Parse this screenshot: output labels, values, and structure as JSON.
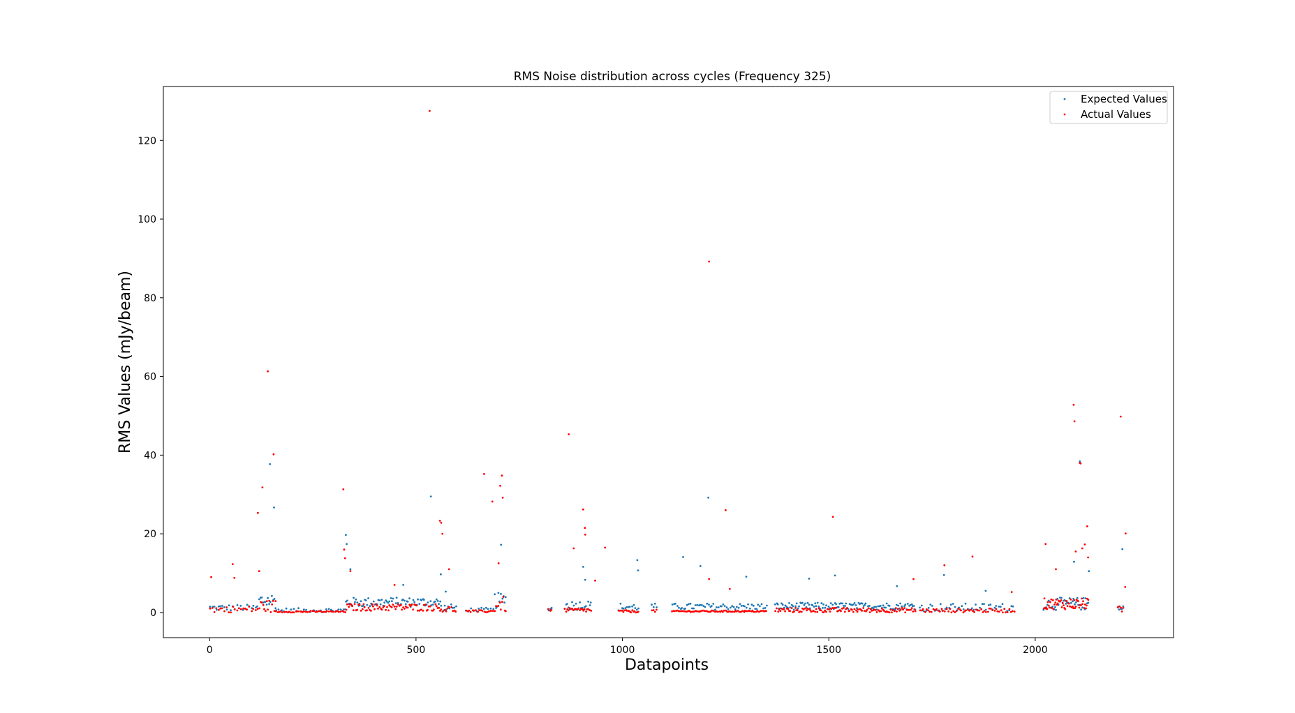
{
  "colors": {
    "expected": "#1f77b4",
    "actual": "#ff0000",
    "axis": "#000000",
    "legend_border": "#cccccc"
  },
  "chart_data": {
    "type": "scatter",
    "title": "RMS Noise distribution across cycles (Frequency 325)",
    "xlabel": "Datapoints",
    "ylabel": "RMS Values (mJy/beam)",
    "xlim": [
      -112,
      2335
    ],
    "ylim": [
      -6.4,
      133.7
    ],
    "xticks": [
      0,
      500,
      1000,
      1500,
      2000
    ],
    "yticks": [
      0,
      20,
      40,
      60,
      80,
      100,
      120
    ],
    "grid": false,
    "legend": "top-right",
    "series": [
      {
        "name": "Expected Values",
        "color": "#1f77b4",
        "marker_size": 1.4,
        "segments": [
          {
            "start": 0,
            "end": 120,
            "step": 5,
            "base": 1.2,
            "jitter": 0.8
          },
          {
            "start": 120,
            "end": 160,
            "step": 3,
            "base": 3.0,
            "jitter": 2.0
          },
          {
            "start": 160,
            "end": 330,
            "step": 6,
            "base": 0.6,
            "jitter": 0.5
          },
          {
            "start": 330,
            "end": 560,
            "step": 3,
            "base": 2.6,
            "jitter": 1.2
          },
          {
            "start": 560,
            "end": 600,
            "step": 4,
            "base": 1.2,
            "jitter": 0.9
          },
          {
            "start": 620,
            "end": 690,
            "step": 6,
            "base": 0.7,
            "jitter": 0.5
          },
          {
            "start": 690,
            "end": 720,
            "step": 3,
            "base": 3.0,
            "jitter": 2.0
          },
          {
            "start": 820,
            "end": 830,
            "step": 4,
            "base": 1.0,
            "jitter": 0.5
          },
          {
            "start": 860,
            "end": 925,
            "step": 3,
            "base": 1.8,
            "jitter": 1.2
          },
          {
            "start": 990,
            "end": 1040,
            "step": 4,
            "base": 1.4,
            "jitter": 1.0
          },
          {
            "start": 1070,
            "end": 1085,
            "step": 4,
            "base": 1.5,
            "jitter": 0.8
          },
          {
            "start": 1120,
            "end": 1350,
            "step": 4,
            "base": 1.5,
            "jitter": 0.8
          },
          {
            "start": 1370,
            "end": 1710,
            "step": 3,
            "base": 1.6,
            "jitter": 0.9
          },
          {
            "start": 1720,
            "end": 1950,
            "step": 5,
            "base": 1.3,
            "jitter": 1.0
          },
          {
            "start": 2020,
            "end": 2130,
            "step": 3,
            "base": 2.2,
            "jitter": 1.6
          },
          {
            "start": 2200,
            "end": 2215,
            "step": 3,
            "base": 1.5,
            "jitter": 1.0
          }
        ],
        "points": [
          [
            146,
            37.7
          ],
          [
            156,
            26.7
          ],
          [
            330,
            19.7
          ],
          [
            332,
            17.4
          ],
          [
            341,
            11.0
          ],
          [
            536,
            29.5
          ],
          [
            560,
            9.7
          ],
          [
            706,
            17.2
          ],
          [
            905,
            11.6
          ],
          [
            910,
            8.3
          ],
          [
            1036,
            13.3
          ],
          [
            1038,
            10.7
          ],
          [
            1147,
            14.1
          ],
          [
            1189,
            11.8
          ],
          [
            1208,
            29.2
          ],
          [
            1300,
            9.1
          ],
          [
            1452,
            8.6
          ],
          [
            1515,
            9.4
          ],
          [
            1779,
            9.5
          ],
          [
            1880,
            5.5
          ],
          [
            2094,
            12.9
          ],
          [
            2108,
            38.4
          ],
          [
            2130,
            10.5
          ],
          [
            2211,
            16.1
          ],
          [
            469,
            7.0
          ],
          [
            572,
            5.3
          ],
          [
            1665,
            6.7
          ]
        ]
      },
      {
        "name": "Actual Values",
        "color": "#ff0000",
        "marker_size": 1.4,
        "segments": [
          {
            "start": 0,
            "end": 120,
            "step": 5,
            "base": 0.8,
            "jitter": 0.8
          },
          {
            "start": 120,
            "end": 160,
            "step": 3,
            "base": 1.6,
            "jitter": 1.6
          },
          {
            "start": 160,
            "end": 330,
            "step": 4,
            "base": 0.2,
            "jitter": 0.2
          },
          {
            "start": 330,
            "end": 560,
            "step": 3,
            "base": 1.3,
            "jitter": 0.9
          },
          {
            "start": 560,
            "end": 600,
            "step": 4,
            "base": 0.8,
            "jitter": 0.8
          },
          {
            "start": 620,
            "end": 690,
            "step": 4,
            "base": 0.3,
            "jitter": 0.3
          },
          {
            "start": 690,
            "end": 720,
            "step": 3,
            "base": 2.0,
            "jitter": 2.0
          },
          {
            "start": 820,
            "end": 830,
            "step": 4,
            "base": 0.5,
            "jitter": 0.4
          },
          {
            "start": 860,
            "end": 925,
            "step": 3,
            "base": 0.6,
            "jitter": 0.5
          },
          {
            "start": 990,
            "end": 1040,
            "step": 3,
            "base": 0.3,
            "jitter": 0.3
          },
          {
            "start": 1070,
            "end": 1085,
            "step": 4,
            "base": 0.4,
            "jitter": 0.3
          },
          {
            "start": 1120,
            "end": 1350,
            "step": 3,
            "base": 0.3,
            "jitter": 0.2
          },
          {
            "start": 1370,
            "end": 1710,
            "step": 3,
            "base": 0.6,
            "jitter": 0.6
          },
          {
            "start": 1720,
            "end": 1950,
            "step": 4,
            "base": 0.5,
            "jitter": 0.5
          },
          {
            "start": 2020,
            "end": 2130,
            "step": 2,
            "base": 2.2,
            "jitter": 1.4
          },
          {
            "start": 2200,
            "end": 2215,
            "step": 3,
            "base": 0.8,
            "jitter": 0.8
          }
        ],
        "points": [
          [
            4,
            9.0
          ],
          [
            56,
            12.3
          ],
          [
            60,
            8.8
          ],
          [
            117,
            25.3
          ],
          [
            120,
            10.5
          ],
          [
            128,
            31.8
          ],
          [
            141,
            61.3
          ],
          [
            155,
            40.2
          ],
          [
            324,
            31.3
          ],
          [
            326,
            16.0
          ],
          [
            328,
            13.8
          ],
          [
            341,
            10.5
          ],
          [
            448,
            7.0
          ],
          [
            533,
            127.5
          ],
          [
            558,
            23.3
          ],
          [
            561,
            22.8
          ],
          [
            564,
            20.0
          ],
          [
            580,
            11.0
          ],
          [
            665,
            35.2
          ],
          [
            685,
            28.2
          ],
          [
            700,
            12.5
          ],
          [
            704,
            32.2
          ],
          [
            708,
            34.8
          ],
          [
            710,
            29.2
          ],
          [
            870,
            45.3
          ],
          [
            882,
            16.3
          ],
          [
            905,
            26.2
          ],
          [
            909,
            21.5
          ],
          [
            910,
            19.8
          ],
          [
            958,
            16.5
          ],
          [
            934,
            8.1
          ],
          [
            1210,
            89.2
          ],
          [
            1250,
            26.0
          ],
          [
            1210,
            8.5
          ],
          [
            1260,
            6.0
          ],
          [
            1510,
            24.3
          ],
          [
            1780,
            12.0
          ],
          [
            1848,
            14.2
          ],
          [
            2025,
            17.4
          ],
          [
            2050,
            11.0
          ],
          [
            2093,
            52.8
          ],
          [
            2095,
            48.6
          ],
          [
            2098,
            15.5
          ],
          [
            2108,
            38.0
          ],
          [
            2110,
            37.9
          ],
          [
            2114,
            16.3
          ],
          [
            2120,
            17.3
          ],
          [
            2126,
            21.9
          ],
          [
            2128,
            14.0
          ],
          [
            2207,
            49.8
          ],
          [
            2219,
            20.1
          ],
          [
            2218,
            6.5
          ],
          [
            1705,
            8.5
          ],
          [
            1943,
            5.2
          ]
        ]
      }
    ]
  }
}
